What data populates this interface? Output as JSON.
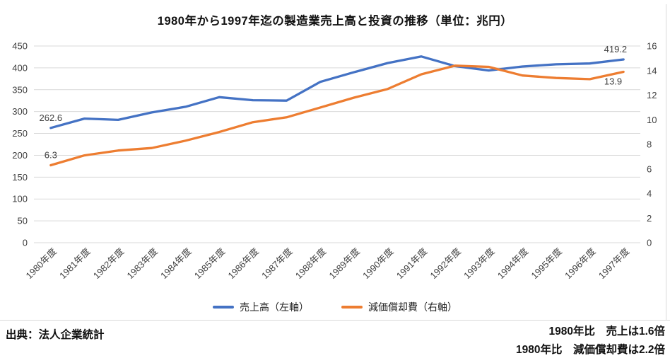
{
  "title": "1980年から1997年迄の製造業売上高と投資の推移（単位：兆円）",
  "footer": {
    "source": "出典：法人企業統計",
    "note1": "1980年比　売上は1.6倍",
    "note2": "1980年比　減価償却費は2.2倍"
  },
  "colors": {
    "sales_line": "#4472C4",
    "depreciation_line": "#ED7D31",
    "gridline": "#D9D9D9",
    "axis_text": "#404040",
    "data_label_text": "#404040"
  },
  "chart_data": {
    "type": "line",
    "title": "1980年から1997年迄の製造業売上高と投資の推移（単位：兆円）",
    "categories": [
      "1980年度",
      "1981年度",
      "1982年度",
      "1983年度",
      "1984年度",
      "1985年度",
      "1986年度",
      "1987年度",
      "1988年度",
      "1989年度",
      "1990年度",
      "1991年度",
      "1992年度",
      "1993年度",
      "1994年度",
      "1995年度",
      "1996年度",
      "1997年度"
    ],
    "series": [
      {
        "name": "売上高（左軸）",
        "axis": "left",
        "color": "#4472C4",
        "values": [
          262.6,
          284,
          281,
          298,
          311,
          333,
          326,
          325,
          368,
          390,
          411,
          426,
          404,
          394,
          403,
          408,
          410,
          419.2
        ]
      },
      {
        "name": "減価償却費（右軸）",
        "axis": "right",
        "color": "#ED7D31",
        "values": [
          6.3,
          7.1,
          7.5,
          7.7,
          8.3,
          9.0,
          9.8,
          10.2,
          11.0,
          11.8,
          12.5,
          13.7,
          14.4,
          14.3,
          13.6,
          13.4,
          13.3,
          13.9
        ]
      }
    ],
    "left_axis": {
      "min": 0,
      "max": 450,
      "step": 50,
      "ticks": [
        0,
        50,
        100,
        150,
        200,
        250,
        300,
        350,
        400,
        450
      ]
    },
    "right_axis": {
      "min": 0,
      "max": 16,
      "step": 2,
      "ticks": [
        0,
        2,
        4,
        6,
        8,
        10,
        12,
        14,
        16
      ]
    },
    "point_labels": [
      {
        "series": 0,
        "index": 0,
        "text": "262.6",
        "anchor": "middle",
        "placement": "above"
      },
      {
        "series": 1,
        "index": 0,
        "text": "6.3",
        "anchor": "middle",
        "placement": "above"
      },
      {
        "series": 0,
        "index": 17,
        "text": "419.2",
        "anchor": "end",
        "placement": "above"
      },
      {
        "series": 1,
        "index": 17,
        "text": "13.9",
        "anchor": "end",
        "placement": "below"
      }
    ],
    "grid": true,
    "legend_position": "bottom",
    "x_label_rotation": -45
  }
}
